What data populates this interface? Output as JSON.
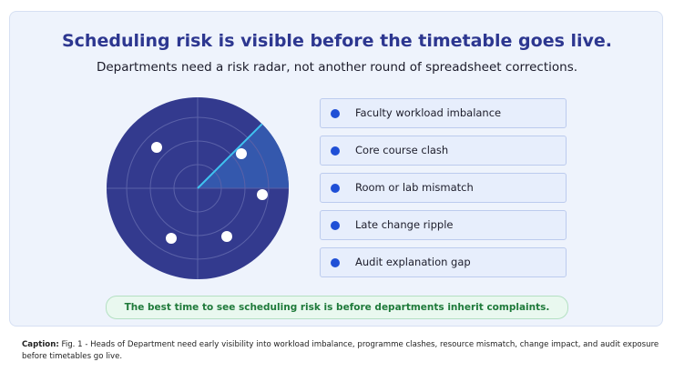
{
  "header": {
    "title": "Scheduling risk is visible before the timetable goes live.",
    "subtitle": "Departments need a risk radar, not another round of spreadsheet corrections."
  },
  "items": [
    "Faculty workload imbalance",
    "Core course clash",
    "Room or lab mismatch",
    "Late change ripple",
    "Audit explanation gap"
  ],
  "callout": "The best time to see scheduling risk is before departments inherit complaints.",
  "caption": {
    "label": "Caption:",
    "text": "Fig. 1 - Heads of Department need early visibility into workload imbalance, programme clashes, resource mismatch, change impact, and audit exposure before timetables go live."
  }
}
